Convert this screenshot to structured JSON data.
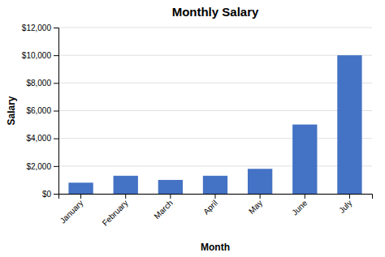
{
  "chart_data": {
    "type": "bar",
    "title": "Monthly Salary",
    "xlabel": "Month",
    "ylabel": "Salary",
    "categories": [
      "January",
      "February",
      "March",
      "April",
      "May",
      "June",
      "July"
    ],
    "values": [
      800,
      1300,
      1000,
      1300,
      1800,
      5000,
      10000
    ],
    "color": "#4472C4",
    "ylim": [
      0,
      12000
    ],
    "yticks": [
      {
        "value": 0,
        "label": "$0"
      },
      {
        "value": 2000,
        "label": "$2,000"
      },
      {
        "value": 4000,
        "label": "$4,000"
      },
      {
        "value": 6000,
        "label": "$6,000"
      },
      {
        "value": 8000,
        "label": "$8,000"
      },
      {
        "value": 10000,
        "label": "$10,000"
      },
      {
        "value": 12000,
        "label": "$12,000"
      }
    ],
    "grid": true
  }
}
